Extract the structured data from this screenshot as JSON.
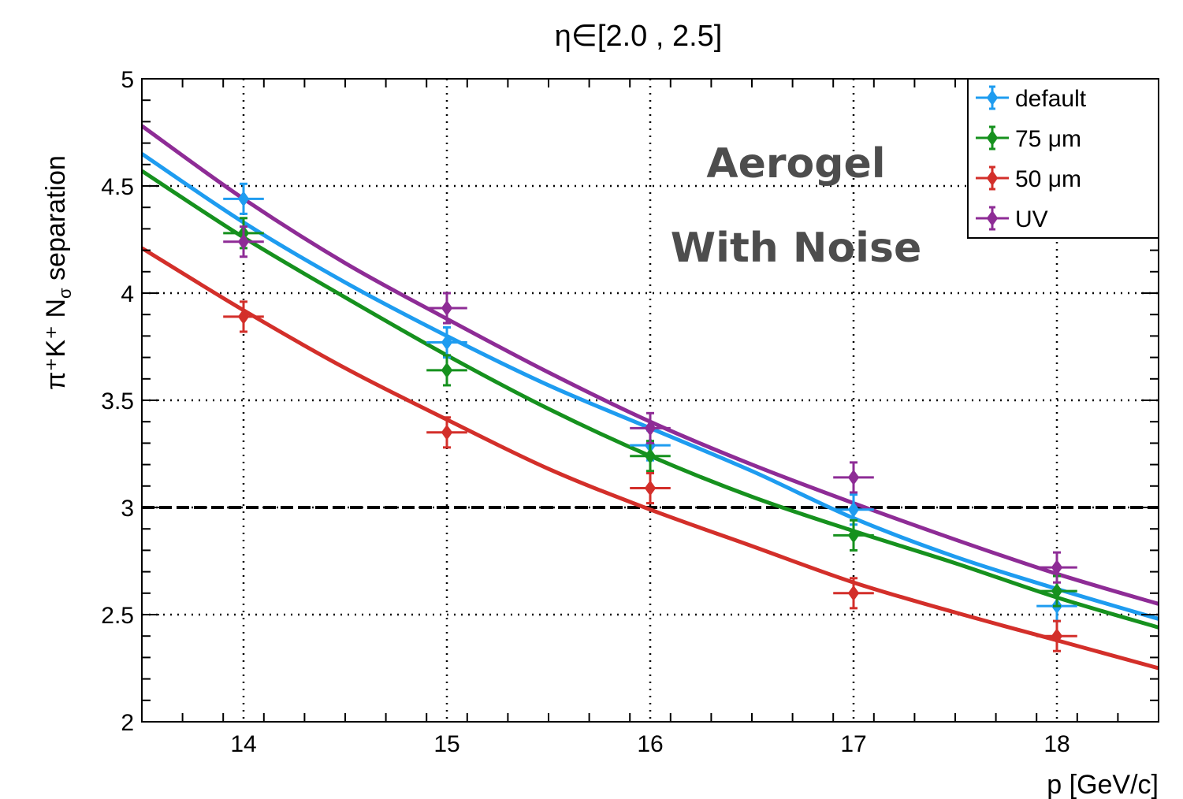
{
  "chart_data": {
    "type": "line",
    "title": "η∈[2.0 , 2.5]",
    "xlabel": "p [GeV/c]",
    "ylabel": "π⁺K⁺ N",
    "ylabel_sub": "σ",
    "ylabel_tail": " separation",
    "xlim": [
      13.5,
      18.5
    ],
    "ylim": [
      2,
      5
    ],
    "x_ticks": [
      "14",
      "15",
      "16",
      "17",
      "18"
    ],
    "y_ticks": [
      "2",
      "2.5",
      "3",
      "3.5",
      "4",
      "4.5",
      "5"
    ],
    "grid": true,
    "threshold": 3,
    "legend_position": "top-right",
    "annotations": [
      "Aerogel",
      "With Noise"
    ],
    "series": [
      {
        "name": "default",
        "color": "#1e9cf0",
        "x": [
          14,
          15,
          16,
          17,
          18
        ],
        "y": [
          4.44,
          3.77,
          3.29,
          2.99,
          2.54
        ],
        "yerr": [
          0.07,
          0.07,
          0.07,
          0.07,
          0.07
        ],
        "xerr": [
          0.1,
          0.1,
          0.1,
          0.1,
          0.1
        ],
        "fit": {
          "x": [
            13.5,
            14,
            14.5,
            15,
            15.5,
            16,
            16.5,
            17,
            17.5,
            18,
            18.5
          ],
          "y": [
            4.65,
            4.33,
            4.05,
            3.8,
            3.57,
            3.37,
            3.17,
            2.95,
            2.77,
            2.62,
            2.48
          ]
        }
      },
      {
        "name": "75 μm",
        "color": "#16911e",
        "x": [
          14,
          15,
          16,
          17,
          18
        ],
        "y": [
          4.28,
          3.64,
          3.24,
          2.87,
          2.61
        ],
        "yerr": [
          0.07,
          0.07,
          0.07,
          0.07,
          0.07
        ],
        "xerr": [
          0.1,
          0.1,
          0.1,
          0.1,
          0.1
        ],
        "fit": {
          "x": [
            13.5,
            14,
            14.5,
            15,
            15.5,
            16,
            16.5,
            17,
            17.5,
            18,
            18.5
          ],
          "y": [
            4.57,
            4.26,
            3.98,
            3.71,
            3.46,
            3.24,
            3.05,
            2.89,
            2.74,
            2.58,
            2.44
          ]
        }
      },
      {
        "name": "50 μm",
        "color": "#d32f2a",
        "x": [
          14,
          15,
          16,
          17,
          18
        ],
        "y": [
          3.89,
          3.35,
          3.09,
          2.6,
          2.4
        ],
        "yerr": [
          0.07,
          0.07,
          0.07,
          0.07,
          0.07
        ],
        "xerr": [
          0.1,
          0.1,
          0.1,
          0.1,
          0.1
        ],
        "fit": {
          "x": [
            13.5,
            14,
            14.5,
            15,
            15.5,
            16,
            16.5,
            17,
            17.5,
            18,
            18.5
          ],
          "y": [
            4.21,
            3.92,
            3.65,
            3.41,
            3.18,
            2.99,
            2.82,
            2.65,
            2.51,
            2.38,
            2.25
          ]
        }
      },
      {
        "name": "UV",
        "color": "#8e2c96",
        "x": [
          14,
          15,
          16,
          17,
          18
        ],
        "y": [
          4.24,
          3.93,
          3.37,
          3.14,
          2.72
        ],
        "yerr": [
          0.07,
          0.07,
          0.07,
          0.07,
          0.07
        ],
        "xerr": [
          0.1,
          0.1,
          0.1,
          0.1,
          0.1
        ],
        "fit": {
          "x": [
            13.5,
            14,
            14.5,
            15,
            15.5,
            16,
            16.5,
            17,
            17.5,
            18,
            18.5
          ],
          "y": [
            4.78,
            4.44,
            4.14,
            3.88,
            3.63,
            3.4,
            3.2,
            3.02,
            2.85,
            2.69,
            2.55
          ]
        }
      }
    ]
  }
}
